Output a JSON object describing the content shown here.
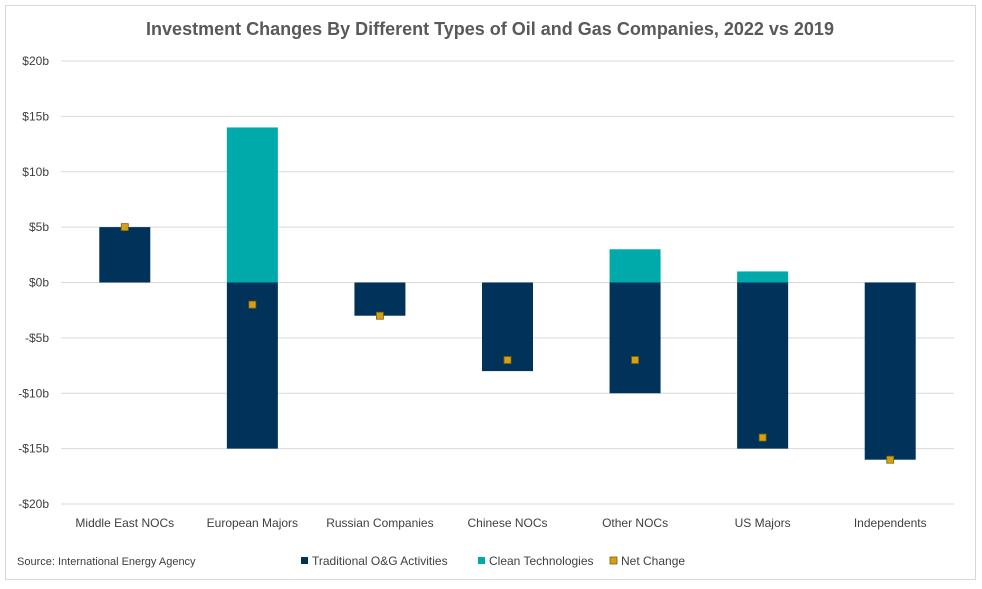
{
  "chart_data": {
    "type": "bar",
    "stacked": true,
    "title": "Investment Changes By Different Types of Oil and Gas Companies, 2022 vs 2019",
    "categories": [
      "Middle East NOCs",
      "European Majors",
      "Russian Companies",
      "Chinese NOCs",
      "Other NOCs",
      "US Majors",
      "Independents"
    ],
    "series": [
      {
        "name": "Traditional O&G Activities",
        "type": "bar",
        "color": "#00325a",
        "values": [
          5,
          -15,
          -3,
          -8,
          -10,
          -15,
          -16
        ]
      },
      {
        "name": "Clean Technologies",
        "type": "bar",
        "color": "#00aaaa",
        "values": [
          0,
          14,
          0,
          0,
          3,
          1,
          0
        ]
      },
      {
        "name": "Net Change",
        "type": "marker",
        "color": "#d4a017",
        "values": [
          5,
          -2,
          -3,
          -7,
          -7,
          -14,
          -16
        ]
      }
    ],
    "yticks": [
      20,
      15,
      10,
      5,
      0,
      -5,
      -10,
      -15,
      -20
    ],
    "ytick_labels": [
      "$20b",
      "$15b",
      "$10b",
      "$5b",
      "$0b",
      "-$5b",
      "-$10b",
      "-$15b",
      "-$20b"
    ],
    "ylim": [
      -20,
      20
    ],
    "grid": true,
    "legend": "bottom",
    "xlabel": "",
    "ylabel": ""
  },
  "source": "Source: International Energy Agency"
}
